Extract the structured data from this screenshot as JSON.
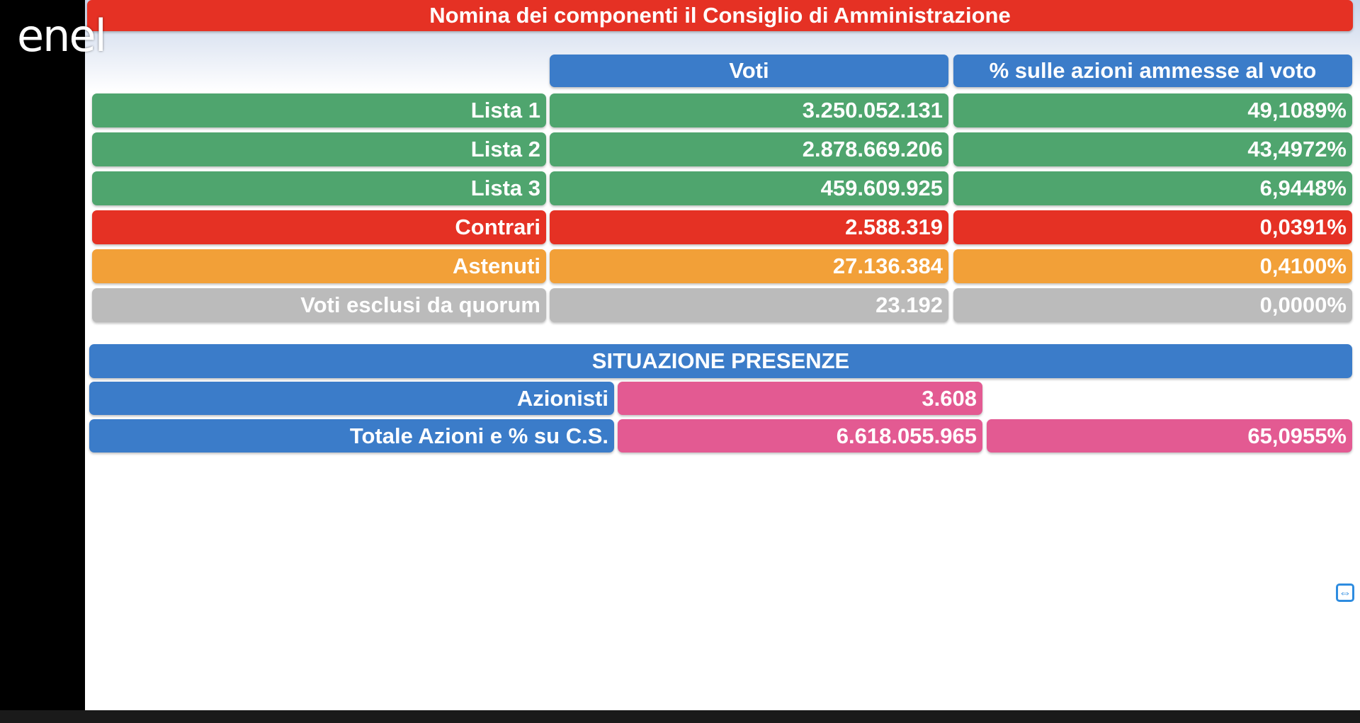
{
  "logo": "enel",
  "title": "Nomina dei componenti il Consiglio di Amministrazione",
  "headers": {
    "votes": "Voti",
    "percent": "% sulle azioni ammesse al voto"
  },
  "rows": [
    {
      "label": "Lista 1",
      "votes": "3.250.052.131",
      "percent": "49,1089%"
    },
    {
      "label": "Lista 2",
      "votes": "2.878.669.206",
      "percent": "43,4972%"
    },
    {
      "label": "Lista 3",
      "votes": "459.609.925",
      "percent": "6,9448%"
    },
    {
      "label": "Contrari",
      "votes": "2.588.319",
      "percent": "0,0391%"
    },
    {
      "label": "Astenuti",
      "votes": "27.136.384",
      "percent": "0,4100%"
    },
    {
      "label": "Voti esclusi da quorum",
      "votes": "23.192",
      "percent": "0,0000%"
    }
  ],
  "presence": {
    "title": "SITUAZIONE PRESENZE",
    "shareholders_label": "Azionisti",
    "shareholders_value": "3.608",
    "total_label": "Totale Azioni e % su C.S.",
    "total_shares": "6.618.055.965",
    "total_percent": "65,0955%"
  },
  "icons": {
    "remote_control": "teamviewer-icon"
  },
  "colors": {
    "title": "#e53124",
    "header": "#3b7cc9",
    "lists": "#4fa56e",
    "against": "#e53124",
    "abstained": "#f2a038",
    "excluded": "#bbbbbb",
    "presence_value": "#e35a92"
  }
}
